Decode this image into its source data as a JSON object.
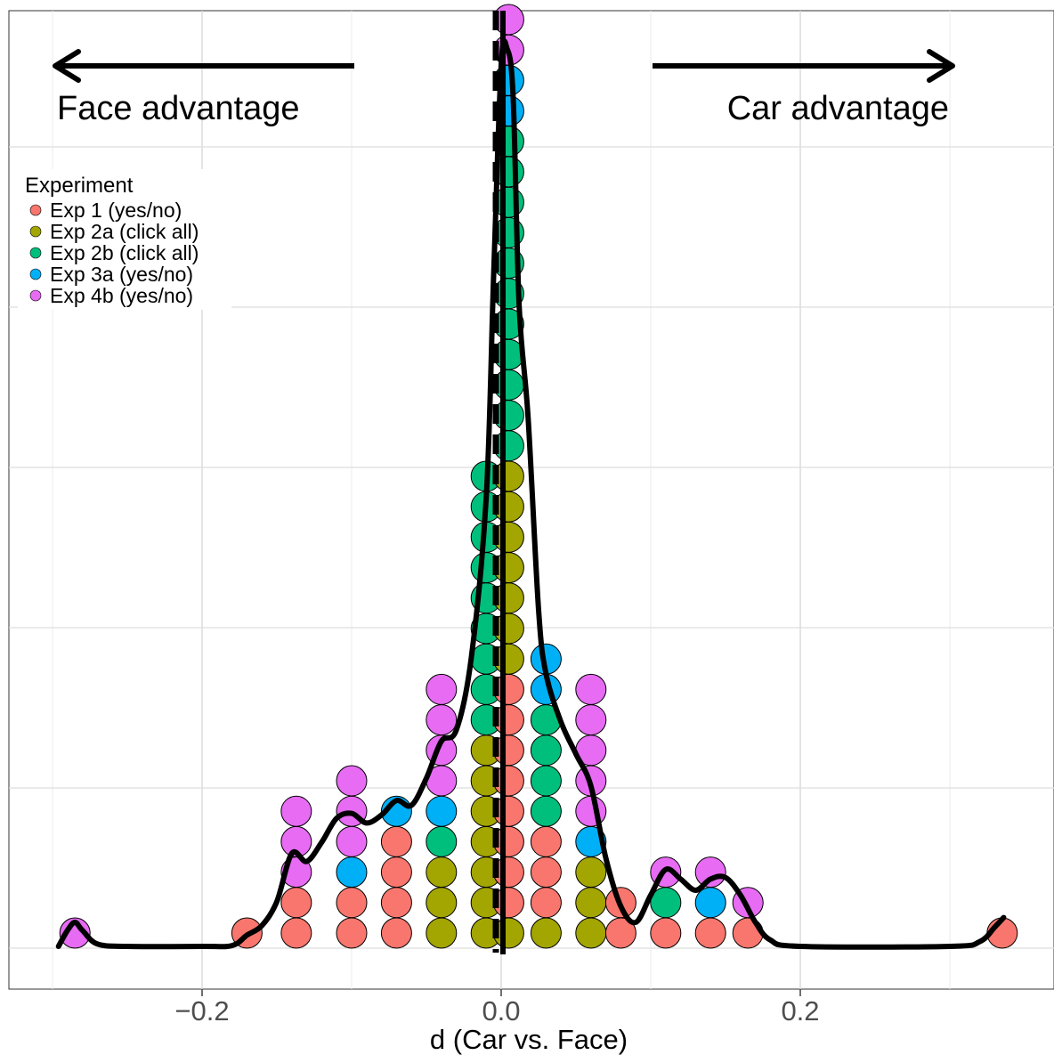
{
  "chart_data": {
    "type": "scatter",
    "subtype": "dotplot-with-density",
    "xlabel": "d (Car vs. Face)",
    "ylabel": "",
    "xlim": [
      -0.33,
      0.35
    ],
    "x_ticks": [
      -0.2,
      0.0,
      0.2
    ],
    "x_tick_labels": [
      "−0.2",
      "0.0",
      "0.2"
    ],
    "grid": true,
    "reference_line_x": 0.0,
    "annotations": {
      "left_label": "Face advantage",
      "right_label": "Car advantage"
    },
    "legend": {
      "title": "Experiment",
      "position": "top-left"
    },
    "series": [
      {
        "name": "Exp 1 (yes/no)",
        "color": "#F8766D"
      },
      {
        "name": "Exp 2a (click all)",
        "color": "#A3A500"
      },
      {
        "name": "Exp 2b (click all)",
        "color": "#00BF7D"
      },
      {
        "name": "Exp 3a (yes/no)",
        "color": "#00B0F6"
      },
      {
        "name": "Exp 4b (yes/no)",
        "color": "#E76BF3"
      }
    ],
    "stacks": [
      {
        "x": -0.285,
        "dots": [
          "Exp 4b (yes/no)"
        ]
      },
      {
        "x": -0.17,
        "dots": [
          "Exp 1 (yes/no)"
        ]
      },
      {
        "x": -0.137,
        "dots": [
          "Exp 1 (yes/no)",
          "Exp 1 (yes/no)",
          "Exp 4b (yes/no)",
          "Exp 4b (yes/no)",
          "Exp 4b (yes/no)"
        ]
      },
      {
        "x": -0.1,
        "dots": [
          "Exp 1 (yes/no)",
          "Exp 1 (yes/no)",
          "Exp 3a (yes/no)",
          "Exp 4b (yes/no)",
          "Exp 4b (yes/no)",
          "Exp 4b (yes/no)"
        ]
      },
      {
        "x": -0.07,
        "dots": [
          "Exp 1 (yes/no)",
          "Exp 1 (yes/no)",
          "Exp 1 (yes/no)",
          "Exp 1 (yes/no)",
          "Exp 3a (yes/no)"
        ]
      },
      {
        "x": -0.04,
        "dots": [
          "Exp 2a (click all)",
          "Exp 2a (click all)",
          "Exp 2a (click all)",
          "Exp 2b (click all)",
          "Exp 3a (yes/no)",
          "Exp 4b (yes/no)",
          "Exp 4b (yes/no)",
          "Exp 4b (yes/no)",
          "Exp 4b (yes/no)"
        ]
      },
      {
        "x": -0.01,
        "dots": [
          "Exp 2a (click all)",
          "Exp 2a (click all)",
          "Exp 2a (click all)",
          "Exp 2a (click all)",
          "Exp 2a (click all)",
          "Exp 2a (click all)",
          "Exp 2a (click all)",
          "Exp 2b (click all)",
          "Exp 2b (click all)",
          "Exp 2b (click all)",
          "Exp 2b (click all)",
          "Exp 2b (click all)",
          "Exp 2b (click all)",
          "Exp 2b (click all)",
          "Exp 2b (click all)",
          "Exp 2b (click all)"
        ]
      },
      {
        "x": 0.005,
        "dots": [
          "Exp 2a (click all)",
          "Exp 1 (yes/no)",
          "Exp 1 (yes/no)",
          "Exp 1 (yes/no)",
          "Exp 1 (yes/no)",
          "Exp 1 (yes/no)",
          "Exp 1 (yes/no)",
          "Exp 1 (yes/no)",
          "Exp 1 (yes/no)",
          "Exp 2a (click all)",
          "Exp 2a (click all)",
          "Exp 2a (click all)",
          "Exp 2a (click all)",
          "Exp 2a (click all)",
          "Exp 2a (click all)",
          "Exp 2a (click all)",
          "Exp 2b (click all)",
          "Exp 2b (click all)",
          "Exp 2b (click all)",
          "Exp 2b (click all)",
          "Exp 2b (click all)",
          "Exp 2b (click all)",
          "Exp 2b (click all)",
          "Exp 2b (click all)",
          "Exp 2b (click all)",
          "Exp 2b (click all)",
          "Exp 2b (click all)",
          "Exp 3a (yes/no)",
          "Exp 3a (yes/no)",
          "Exp 4b (yes/no)",
          "Exp 4b (yes/no)"
        ]
      },
      {
        "x": 0.03,
        "dots": [
          "Exp 2a (click all)",
          "Exp 1 (yes/no)",
          "Exp 1 (yes/no)",
          "Exp 1 (yes/no)",
          "Exp 2b (click all)",
          "Exp 2b (click all)",
          "Exp 2b (click all)",
          "Exp 2b (click all)",
          "Exp 3a (yes/no)",
          "Exp 3a (yes/no)"
        ]
      },
      {
        "x": 0.06,
        "dots": [
          "Exp 2a (click all)",
          "Exp 2a (click all)",
          "Exp 2a (click all)",
          "Exp 3a (yes/no)",
          "Exp 4b (yes/no)",
          "Exp 4b (yes/no)",
          "Exp 4b (yes/no)",
          "Exp 4b (yes/no)",
          "Exp 4b (yes/no)"
        ]
      },
      {
        "x": 0.08,
        "dots": [
          "Exp 1 (yes/no)",
          "Exp 1 (yes/no)"
        ]
      },
      {
        "x": 0.11,
        "dots": [
          "Exp 1 (yes/no)",
          "Exp 2b (click all)",
          "Exp 4b (yes/no)"
        ]
      },
      {
        "x": 0.14,
        "dots": [
          "Exp 1 (yes/no)",
          "Exp 3a (yes/no)",
          "Exp 4b (yes/no)"
        ]
      },
      {
        "x": 0.165,
        "dots": [
          "Exp 1 (yes/no)",
          "Exp 4b (yes/no)"
        ]
      },
      {
        "x": 0.335,
        "dots": [
          "Exp 1 (yes/no)"
        ]
      }
    ],
    "density_curve": [
      [
        -0.296,
        0.0
      ],
      [
        -0.29,
        1.0
      ],
      [
        -0.285,
        1.5
      ],
      [
        -0.28,
        1.0
      ],
      [
        -0.27,
        0.15
      ],
      [
        -0.25,
        0.0
      ],
      [
        -0.2,
        0.0
      ],
      [
        -0.18,
        0.05
      ],
      [
        -0.17,
        0.7
      ],
      [
        -0.16,
        1.3
      ],
      [
        -0.15,
        2.8
      ],
      [
        -0.14,
        5.8
      ],
      [
        -0.13,
        5.3
      ],
      [
        -0.12,
        6.5
      ],
      [
        -0.11,
        8.0
      ],
      [
        -0.1,
        8.3
      ],
      [
        -0.09,
        7.7
      ],
      [
        -0.08,
        8.2
      ],
      [
        -0.07,
        9.1
      ],
      [
        -0.06,
        8.8
      ],
      [
        -0.05,
        10.5
      ],
      [
        -0.04,
        12.8
      ],
      [
        -0.03,
        13.5
      ],
      [
        -0.02,
        18.0
      ],
      [
        -0.01,
        28.0
      ],
      [
        -0.005,
        42.0
      ],
      [
        0.0,
        55.0
      ],
      [
        0.004,
        56.0
      ],
      [
        0.008,
        53.0
      ],
      [
        0.012,
        40.0
      ],
      [
        0.018,
        33.0
      ],
      [
        0.025,
        21.0
      ],
      [
        0.03,
        17.0
      ],
      [
        0.04,
        14.0
      ],
      [
        0.05,
        12.0
      ],
      [
        0.06,
        10.0
      ],
      [
        0.07,
        5.5
      ],
      [
        0.08,
        2.5
      ],
      [
        0.09,
        1.5
      ],
      [
        0.1,
        3.2
      ],
      [
        0.11,
        4.8
      ],
      [
        0.12,
        4.2
      ],
      [
        0.13,
        3.5
      ],
      [
        0.14,
        4.2
      ],
      [
        0.15,
        4.3
      ],
      [
        0.16,
        3.2
      ],
      [
        0.17,
        1.5
      ],
      [
        0.18,
        0.4
      ],
      [
        0.2,
        0.0
      ],
      [
        0.3,
        0.0
      ],
      [
        0.32,
        0.3
      ],
      [
        0.33,
        1.2
      ],
      [
        0.336,
        1.8
      ]
    ]
  }
}
